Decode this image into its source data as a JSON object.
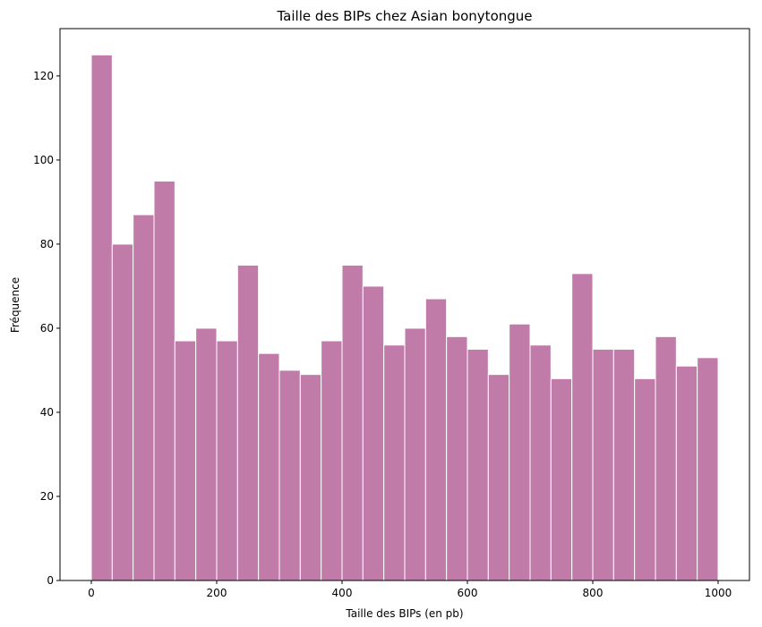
{
  "chart_data": {
    "type": "bar",
    "title": "Taille des BIPs chez Asian bonytongue",
    "xlabel": "Taille des BIPs (en pb)",
    "ylabel": "Fréquence",
    "xlim": [
      -50,
      1050
    ],
    "ylim": [
      0,
      131.25
    ],
    "x_ticks": [
      0,
      200,
      400,
      600,
      800,
      1000
    ],
    "y_ticks": [
      0,
      20,
      40,
      60,
      80,
      100,
      120
    ],
    "bin_start": 0,
    "bin_end": 1000,
    "values": [
      125,
      80,
      87,
      95,
      57,
      60,
      57,
      75,
      54,
      50,
      49,
      57,
      75,
      70,
      56,
      60,
      67,
      58,
      55,
      49,
      61,
      56,
      48,
      73,
      55,
      55,
      48,
      58,
      51,
      53
    ],
    "bar_color": "#c07ba8",
    "bar_edge_color": "#ffffff",
    "grid": false
  }
}
